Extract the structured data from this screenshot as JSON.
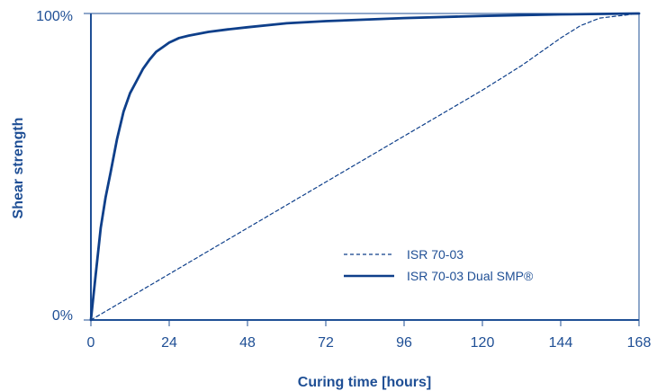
{
  "chart_data": {
    "type": "line",
    "xlabel": "Curing time [hours]",
    "ylabel": "Shear strength",
    "xlim": [
      0,
      168
    ],
    "ylim": [
      0,
      100
    ],
    "x_ticks": [
      "0",
      "24",
      "48",
      "72",
      "96",
      "120",
      "144",
      "168"
    ],
    "x_tick_values": [
      0,
      24,
      48,
      72,
      96,
      120,
      144,
      168
    ],
    "y_ticks": [
      "0%",
      "100%"
    ],
    "y_tick_values": [
      0,
      100
    ],
    "grid": false,
    "legend_position": "bottom-right",
    "series": [
      {
        "name": "ISR 70-03",
        "style": "dashed",
        "x": [
          0,
          24,
          48,
          72,
          96,
          120,
          132,
          144,
          150,
          156,
          168
        ],
        "y": [
          0,
          15,
          30,
          45,
          60,
          75,
          83,
          92,
          96,
          98.5,
          100
        ]
      },
      {
        "name": "ISR 70-03 Dual SMP®",
        "style": "solid",
        "x": [
          0,
          1.5,
          3,
          4.5,
          6,
          8,
          10,
          12,
          14,
          16,
          18,
          20,
          22,
          24,
          27,
          30,
          36,
          42,
          48,
          60,
          72,
          96,
          120,
          144,
          168
        ],
        "y": [
          0,
          15,
          30,
          40,
          48,
          59,
          68,
          74,
          78,
          82,
          85,
          87.5,
          89,
          90.5,
          92,
          92.8,
          94,
          94.8,
          95.5,
          96.8,
          97.5,
          98.5,
          99.2,
          99.7,
          100
        ]
      }
    ],
    "colors": {
      "line": "#0e3f8a",
      "text": "#1f4f95",
      "frame": "#1f4f95"
    }
  }
}
